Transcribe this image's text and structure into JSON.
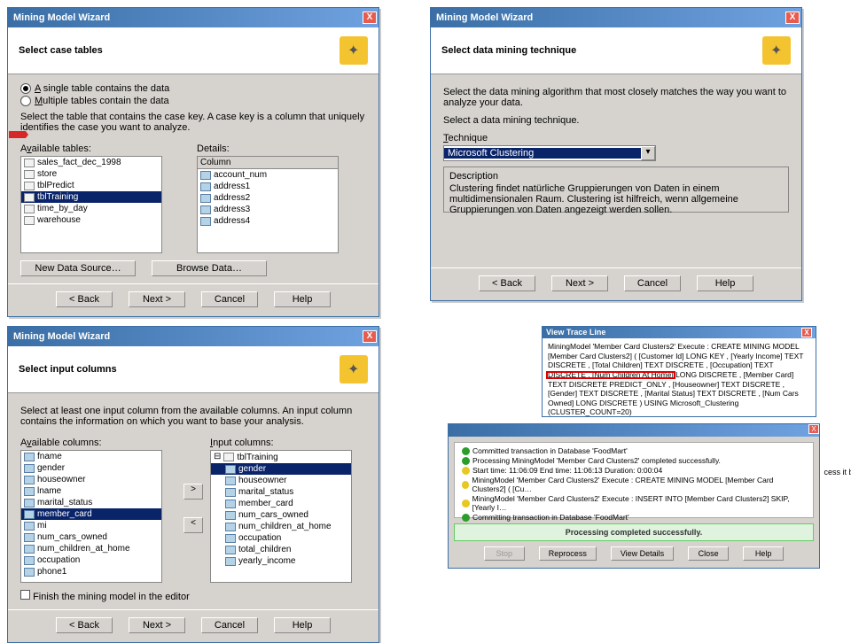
{
  "wizard_title": "Mining Model Wizard",
  "header_icon": "wand-icon",
  "nav": {
    "back": "< Back",
    "next": "Next >",
    "cancel": "Cancel",
    "help": "Help"
  },
  "p1": {
    "heading": "Select case tables",
    "radio_single": "A single table contains the data",
    "radio_multiple": "Multiple tables contain the data",
    "instruction": "Select the table that contains the case key. A case key is a column that uniquely identifies the case you want to analyze.",
    "available_label": "Available tables:",
    "details_label": "Details:",
    "col_header": "Column",
    "tables": [
      "sales_fact_dec_1998",
      "store",
      "tblPredict",
      "tblTraining",
      "time_by_day",
      "warehouse"
    ],
    "tables_selected": "tblTraining",
    "columns": [
      "account_num",
      "address1",
      "address2",
      "address3",
      "address4"
    ],
    "btn_new_ds": "New Data Source…",
    "btn_browse": "Browse Data…"
  },
  "p2": {
    "heading": "Select data mining technique",
    "instruction": "Select the data mining algorithm that most closely matches the way you want to analyze your data.",
    "select_label": "Select a data mining technique.",
    "technique_label": "Technique",
    "technique_value": "Microsoft Clustering",
    "desc_label": "Description",
    "desc_text": "Clustering findet natürliche Gruppierungen von Daten in einem multidimensionalen Raum. Clustering ist hilfreich, wenn allgemeine Gruppierungen von Daten angezeigt werden sollen."
  },
  "p3": {
    "heading": "Select input columns",
    "instruction": "Select at least one input column from the available columns. An input column contains the information on which you want to base your analysis.",
    "available_label": "Available columns:",
    "input_label": "Input columns:",
    "available": [
      "fname",
      "gender",
      "houseowner",
      "lname",
      "marital_status",
      "member_card",
      "mi",
      "num_cars_owned",
      "num_children_at_home",
      "occupation",
      "phone1"
    ],
    "available_selected": "member_card",
    "input_root": "tblTraining",
    "input_cols": [
      "gender",
      "houseowner",
      "marital_status",
      "member_card",
      "num_cars_owned",
      "num_children_at_home",
      "occupation",
      "total_children",
      "yearly_income"
    ],
    "input_selected": "gender",
    "finish_label": "Finish the mining model in the editor"
  },
  "p4": {
    "trace_title": "View Trace Line",
    "trace_text": "MiningModel 'Member Card Clusters2' Execute : CREATE MINING MODEL [Member Card Clusters2] ( [Customer Id] LONG KEY , [Yearly Income] TEXT DISCRETE , [Total Children] TEXT DISCRETE , [Occupation] TEXT DISCRETE , [Num Children At Home] LONG DISCRETE , [Member Card] TEXT DISCRETE PREDICT_ONLY , [Houseowner] TEXT DISCRETE , [Gender] TEXT DISCRETE , [Marital Status] TEXT DISCRETE , [Num Cars Owned] LONG DISCRETE ) USING Microsoft_Clustering (CLUSTER_COUNT=20)",
    "proc_lines": [
      {
        "ic": "g",
        "t": "Committed transaction in Database 'FoodMart'"
      },
      {
        "ic": "g",
        "t": "Processing MiningModel 'Member Card Clusters2' completed successfully."
      },
      {
        "ic": "y",
        "t": "Start time: 11:06:09 End time: 11:06:13 Duration: 0:00:04"
      },
      {
        "ic": "y",
        "t": "MiningModel 'Member Card Clusters2' Execute : CREATE MINING MODEL [Member Card Clusters2] ( [Cu…"
      },
      {
        "ic": "y",
        "t": "MiningModel 'Member Card Clusters2' Execute : INSERT INTO [Member Card Clusters2] SKIP, [Yearly I…"
      },
      {
        "ic": "g",
        "t": "Committing transaction in Database 'FoodMart'"
      }
    ],
    "status": "Processing completed successfully.",
    "btns": {
      "stop": "Stop",
      "reprocess": "Reprocess",
      "view": "View Details",
      "close": "Close",
      "help": "Help"
    },
    "side": "cess it befo"
  }
}
